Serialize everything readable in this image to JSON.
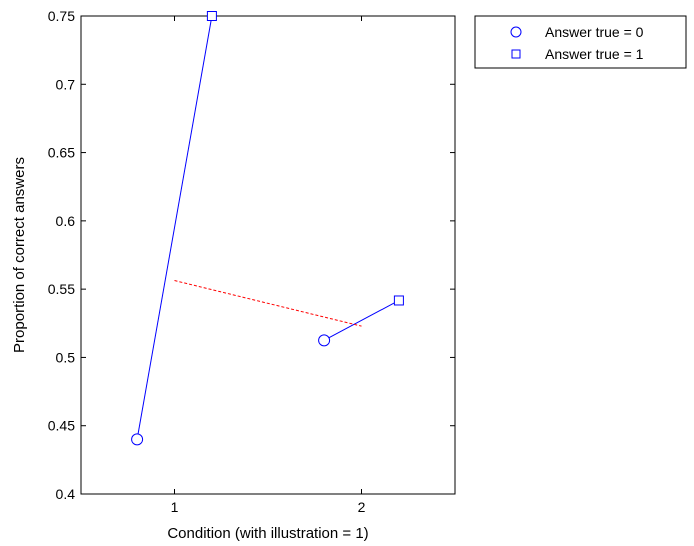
{
  "chart_data": {
    "type": "line",
    "xlabel": "Condition (with illustration = 1)",
    "ylabel": "Proportion of correct answers",
    "xlim": [
      0.5,
      2.5
    ],
    "ylim": [
      0.4,
      0.75
    ],
    "xticks": [
      "1",
      "2"
    ],
    "xtick_values": [
      1,
      2
    ],
    "yticks": [
      "0.4",
      "0.45",
      "0.5",
      "0.55",
      "0.6",
      "0.65",
      "0.7",
      "0.75"
    ],
    "ytick_values": [
      0.4,
      0.45,
      0.5,
      0.55,
      0.6,
      0.65,
      0.7,
      0.75
    ],
    "grid": false,
    "legend_position": "outside top-right",
    "connector_color": "#0000ff",
    "interaction_color": "#ff0000",
    "series": [
      {
        "name": "Answer true = 0",
        "marker": "circle",
        "color": "#0000ff",
        "points": [
          {
            "x": 0.8,
            "y": 0.44
          },
          {
            "x": 1.8,
            "y": 0.5125
          }
        ]
      },
      {
        "name": "Answer true = 1",
        "marker": "square",
        "color": "#0000ff",
        "points": [
          {
            "x": 1.2,
            "y": 0.75
          },
          {
            "x": 2.2,
            "y": 0.5417
          }
        ]
      }
    ],
    "condition_lines": [
      {
        "condition": 1,
        "from": {
          "x": 0.8,
          "y": 0.44
        },
        "to": {
          "x": 1.2,
          "y": 0.75
        }
      },
      {
        "condition": 2,
        "from": {
          "x": 1.8,
          "y": 0.5125
        },
        "to": {
          "x": 2.2,
          "y": 0.5417
        }
      }
    ],
    "dashed_line": {
      "color": "#ff0000",
      "from": {
        "x": 1.0,
        "y": 0.5563
      },
      "to": {
        "x": 2.0,
        "y": 0.5229
      }
    }
  }
}
